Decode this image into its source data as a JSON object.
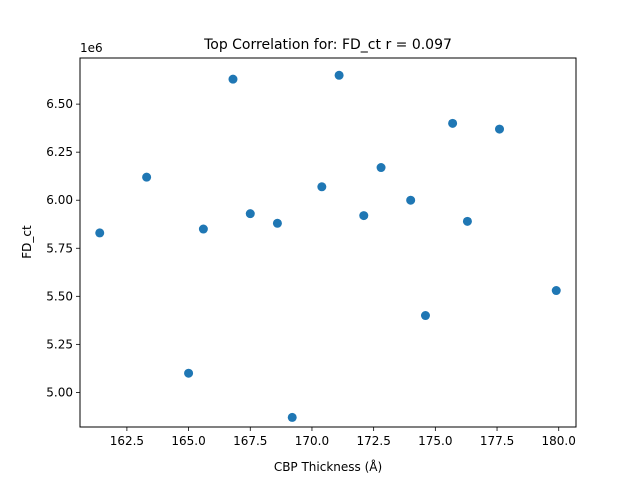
{
  "chart_data": {
    "type": "scatter",
    "title": "Top Correlation for: FD_ct r = 0.097",
    "xlabel": "CBP Thickness (Å)",
    "ylabel": "FD_ct",
    "y_offset_label": "1e6",
    "xlim": [
      160.6,
      180.7
    ],
    "ylim": [
      4.82,
      6.74
    ],
    "x_ticks": [
      162.5,
      165.0,
      167.5,
      170.0,
      172.5,
      175.0,
      177.5,
      180.0
    ],
    "x_tick_labels": [
      "162.5",
      "165.0",
      "167.5",
      "170.0",
      "172.5",
      "175.0",
      "177.5",
      "180.0"
    ],
    "y_ticks": [
      5.0,
      5.25,
      5.5,
      5.75,
      6.0,
      6.25,
      6.5
    ],
    "y_tick_labels": [
      "5.00",
      "5.25",
      "5.50",
      "5.75",
      "6.00",
      "6.25",
      "6.50"
    ],
    "marker_color": "#1f77b4",
    "points": [
      {
        "x": 161.4,
        "y": 5.83
      },
      {
        "x": 163.3,
        "y": 6.12
      },
      {
        "x": 165.0,
        "y": 5.1
      },
      {
        "x": 165.6,
        "y": 5.85
      },
      {
        "x": 166.8,
        "y": 6.63
      },
      {
        "x": 167.5,
        "y": 5.93
      },
      {
        "x": 168.6,
        "y": 5.88
      },
      {
        "x": 169.2,
        "y": 4.87
      },
      {
        "x": 170.4,
        "y": 6.07
      },
      {
        "x": 171.1,
        "y": 6.65
      },
      {
        "x": 172.1,
        "y": 5.92
      },
      {
        "x": 172.8,
        "y": 6.17
      },
      {
        "x": 174.0,
        "y": 6.0
      },
      {
        "x": 174.6,
        "y": 5.4
      },
      {
        "x": 175.7,
        "y": 6.4
      },
      {
        "x": 176.3,
        "y": 5.89
      },
      {
        "x": 177.6,
        "y": 6.37
      },
      {
        "x": 179.9,
        "y": 5.53
      }
    ]
  }
}
